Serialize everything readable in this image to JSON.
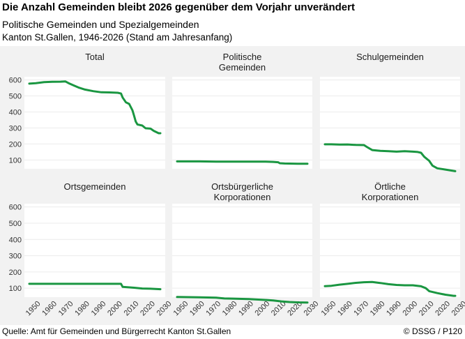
{
  "title": "Die Anzahl Gemeinden bleibt 2026 gegenüber dem Vorjahr unverändert",
  "subtitle": "Politische Gemeinden und Spezialgemeinden",
  "subtitle2": "Kanton St.Gallen, 1946-2026 (Stand am Jahresanfang)",
  "source": "Quelle: Amt für Gemeinden und Bürgerrecht Kanton St.Gallen",
  "copyright": "© DSSG / P120",
  "colors": {
    "line": "#1a9641",
    "panel_bg": "#f2f2f2",
    "plot_bg": "#ffffff"
  },
  "chart_data": {
    "type": "line",
    "x_ticks": [
      1950,
      1960,
      1970,
      1980,
      1990,
      2000,
      2010,
      2020,
      2030
    ],
    "y_ticks": [
      100,
      200,
      300,
      400,
      500,
      600
    ],
    "xlim": [
      1943,
      2029
    ],
    "ylim": [
      45,
      620
    ],
    "panels": [
      {
        "title": [
          "Total"
        ],
        "points": [
          [
            1946,
            577
          ],
          [
            1950,
            580
          ],
          [
            1955,
            586
          ],
          [
            1960,
            588
          ],
          [
            1965,
            589
          ],
          [
            1968,
            591
          ],
          [
            1970,
            580
          ],
          [
            1973,
            566
          ],
          [
            1976,
            553
          ],
          [
            1980,
            540
          ],
          [
            1985,
            530
          ],
          [
            1990,
            523
          ],
          [
            1995,
            522
          ],
          [
            2000,
            520
          ],
          [
            2002,
            515
          ],
          [
            2003,
            490
          ],
          [
            2005,
            460
          ],
          [
            2007,
            450
          ],
          [
            2009,
            410
          ],
          [
            2010,
            375
          ],
          [
            2011,
            340
          ],
          [
            2012,
            322
          ],
          [
            2015,
            315
          ],
          [
            2017,
            298
          ],
          [
            2020,
            296
          ],
          [
            2022,
            282
          ],
          [
            2025,
            267
          ],
          [
            2026,
            267
          ]
        ]
      },
      {
        "title": [
          "Politische",
          "Gemeinden"
        ],
        "points": [
          [
            1946,
            91
          ],
          [
            1960,
            91
          ],
          [
            1970,
            90
          ],
          [
            1980,
            90
          ],
          [
            1990,
            90
          ],
          [
            2000,
            90
          ],
          [
            2005,
            88
          ],
          [
            2008,
            86
          ],
          [
            2009,
            80
          ],
          [
            2012,
            78
          ],
          [
            2020,
            77
          ],
          [
            2026,
            77
          ]
        ]
      },
      {
        "title": [
          "Schulgemeinden"
        ],
        "points": [
          [
            1946,
            198
          ],
          [
            1950,
            198
          ],
          [
            1955,
            196
          ],
          [
            1960,
            197
          ],
          [
            1965,
            194
          ],
          [
            1970,
            193
          ],
          [
            1972,
            180
          ],
          [
            1975,
            162
          ],
          [
            1980,
            157
          ],
          [
            1985,
            155
          ],
          [
            1990,
            152
          ],
          [
            1995,
            155
          ],
          [
            2000,
            152
          ],
          [
            2003,
            150
          ],
          [
            2005,
            145
          ],
          [
            2007,
            120
          ],
          [
            2010,
            95
          ],
          [
            2012,
            65
          ],
          [
            2015,
            48
          ],
          [
            2020,
            40
          ],
          [
            2026,
            30
          ]
        ]
      },
      {
        "title": [
          "Ortsgemeinden"
        ],
        "points": [
          [
            1946,
            127
          ],
          [
            1960,
            127
          ],
          [
            1970,
            127
          ],
          [
            1980,
            127
          ],
          [
            1990,
            127
          ],
          [
            2000,
            127
          ],
          [
            2002,
            127
          ],
          [
            2003,
            108
          ],
          [
            2010,
            103
          ],
          [
            2015,
            98
          ],
          [
            2020,
            97
          ],
          [
            2026,
            94
          ]
        ]
      },
      {
        "title": [
          "Ortsbürgerliche",
          "Korporationen"
        ],
        "points": [
          [
            1946,
            46
          ],
          [
            1960,
            44
          ],
          [
            1970,
            42
          ],
          [
            1975,
            37
          ],
          [
            1980,
            36
          ],
          [
            1990,
            33
          ],
          [
            2000,
            28
          ],
          [
            2005,
            25
          ],
          [
            2010,
            19
          ],
          [
            2015,
            15
          ],
          [
            2020,
            13
          ],
          [
            2026,
            12
          ]
        ]
      },
      {
        "title": [
          "Örtliche",
          "Korporationen"
        ],
        "points": [
          [
            1946,
            113
          ],
          [
            1950,
            115
          ],
          [
            1955,
            122
          ],
          [
            1960,
            127
          ],
          [
            1965,
            133
          ],
          [
            1970,
            137
          ],
          [
            1975,
            138
          ],
          [
            1980,
            132
          ],
          [
            1985,
            125
          ],
          [
            1990,
            120
          ],
          [
            1995,
            118
          ],
          [
            2000,
            118
          ],
          [
            2005,
            112
          ],
          [
            2008,
            100
          ],
          [
            2010,
            82
          ],
          [
            2015,
            70
          ],
          [
            2020,
            60
          ],
          [
            2025,
            53
          ],
          [
            2026,
            53
          ]
        ]
      }
    ]
  }
}
